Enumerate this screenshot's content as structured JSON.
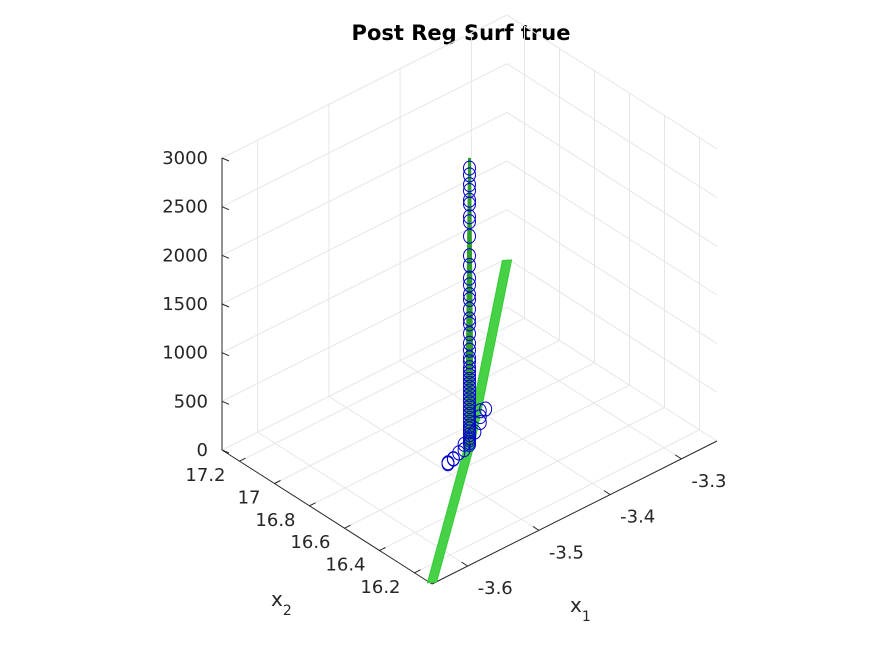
{
  "chart_data": {
    "type": "scatter",
    "title": "Post Reg Surf true",
    "xlabel": "x",
    "xlabel_sub": "1",
    "ylabel": "x",
    "ylabel_sub": "2",
    "zlabel": "",
    "xlim": [
      -3.65,
      -3.25
    ],
    "ylim": [
      16.1,
      17.3
    ],
    "zlim": [
      0,
      3000
    ],
    "x_ticks": [
      "-3.6",
      "-3.5",
      "-3.4",
      "-3.3"
    ],
    "y_ticks": [
      "16.2",
      "16.4",
      "16.6",
      "16.8",
      "17",
      "17.2"
    ],
    "z_ticks": [
      "0",
      "500",
      "1000",
      "1500",
      "2000",
      "2500",
      "3000"
    ],
    "grid": true,
    "surface_color": "#33cc33",
    "marker_color": "#0000cc",
    "surface": {
      "u_range": [
        -3.65,
        -3.25
      ],
      "v_range": [
        16.1,
        17.3
      ],
      "thickness_lo": -1.5,
      "thickness_hi": 1.5,
      "center_x": -3.45,
      "center_y": 16.7,
      "grow": 4000
    },
    "series": [
      {
        "points": [
          [
            -3.45,
            16.7,
            2850
          ],
          [
            -3.45,
            16.7,
            2780
          ],
          [
            -3.45,
            16.7,
            2680
          ],
          [
            -3.45,
            16.7,
            2620
          ],
          [
            -3.45,
            16.7,
            2520
          ],
          [
            -3.45,
            16.7,
            2480
          ],
          [
            -3.45,
            16.7,
            2350
          ],
          [
            -3.45,
            16.7,
            2300
          ],
          [
            -3.45,
            16.7,
            2150
          ],
          [
            -3.45,
            16.7,
            1950
          ],
          [
            -3.45,
            16.7,
            1850
          ],
          [
            -3.45,
            16.7,
            1720
          ],
          [
            -3.45,
            16.7,
            1650
          ],
          [
            -3.45,
            16.7,
            1550
          ],
          [
            -3.45,
            16.7,
            1500
          ],
          [
            -3.45,
            16.7,
            1400
          ],
          [
            -3.45,
            16.7,
            1300
          ],
          [
            -3.45,
            16.7,
            1250
          ],
          [
            -3.45,
            16.7,
            1150
          ],
          [
            -3.45,
            16.7,
            1050
          ],
          [
            -3.45,
            16.7,
            980
          ],
          [
            -3.45,
            16.7,
            900
          ],
          [
            -3.45,
            16.7,
            860
          ],
          [
            -3.45,
            16.7,
            800
          ],
          [
            -3.45,
            16.7,
            760
          ],
          [
            -3.45,
            16.7,
            720
          ],
          [
            -3.45,
            16.7,
            680
          ],
          [
            -3.45,
            16.7,
            640
          ],
          [
            -3.45,
            16.7,
            600
          ],
          [
            -3.45,
            16.7,
            560
          ],
          [
            -3.45,
            16.7,
            520
          ],
          [
            -3.45,
            16.7,
            480
          ],
          [
            -3.45,
            16.7,
            440
          ],
          [
            -3.45,
            16.7,
            400
          ],
          [
            -3.45,
            16.7,
            360
          ],
          [
            -3.45,
            16.7,
            320
          ],
          [
            -3.45,
            16.7,
            280
          ],
          [
            -3.45,
            16.7,
            240
          ],
          [
            -3.45,
            16.7,
            200
          ],
          [
            -3.45,
            16.7,
            170
          ],
          [
            -3.45,
            16.7,
            140
          ],
          [
            -3.45,
            16.7,
            110
          ],
          [
            -3.45,
            16.7,
            80
          ],
          [
            -3.45,
            16.7,
            55
          ],
          [
            -3.45,
            16.7,
            30
          ],
          [
            -3.45,
            16.7,
            10
          ],
          [
            -3.43,
            16.72,
            260
          ],
          [
            -3.43,
            16.72,
            200
          ],
          [
            -3.42,
            16.73,
            230
          ],
          [
            -3.43,
            16.72,
            140
          ],
          [
            -3.44,
            16.71,
            90
          ],
          [
            -3.46,
            16.69,
            60
          ],
          [
            -3.47,
            16.68,
            20
          ],
          [
            -3.46,
            16.69,
            5
          ],
          [
            -3.48,
            16.67,
            5
          ],
          [
            -3.48,
            16.67,
            10
          ],
          [
            -3.49,
            16.66,
            15
          ],
          [
            -3.49,
            16.66,
            5
          ]
        ]
      }
    ]
  }
}
